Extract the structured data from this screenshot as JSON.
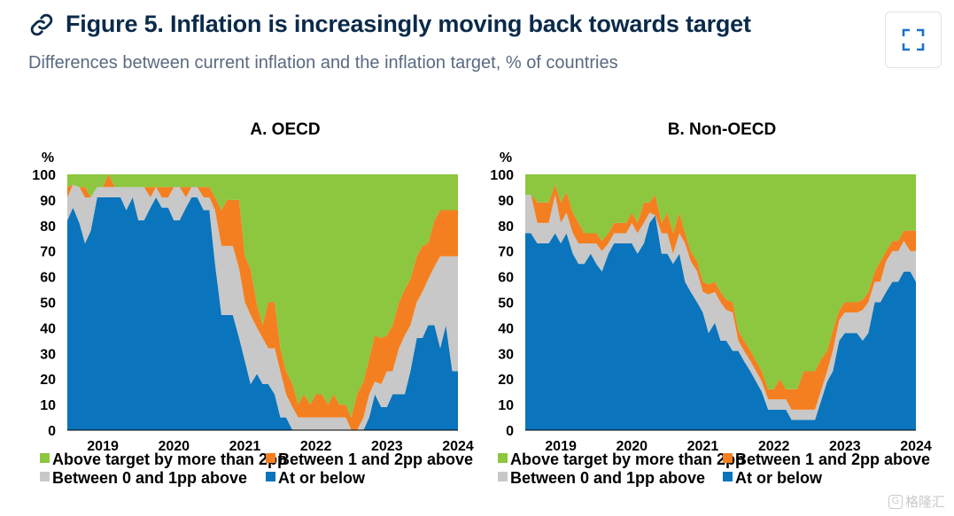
{
  "header": {
    "title": "Figure 5. Inflation is increasingly moving back towards target",
    "subtitle": "Differences between current inflation and the inflation target, % of countries"
  },
  "watermark": "格隆汇",
  "colors": {
    "green": "#8dc63f",
    "orange": "#f47f20",
    "grey": "#c8c8c8",
    "blue": "#0a75bc"
  },
  "legend": [
    {
      "key": "above2",
      "label": "Above target by more than 2pp",
      "color": "#8dc63f"
    },
    {
      "key": "b12",
      "label": "Between 1 and 2pp above",
      "color": "#f47f20"
    },
    {
      "key": "b01",
      "label": "Between 0 and 1pp above",
      "color": "#c8c8c8"
    },
    {
      "key": "below",
      "label": "At or below",
      "color": "#0a75bc"
    }
  ],
  "chart_data": [
    {
      "type": "area",
      "stacked": true,
      "title": "A. OECD",
      "ylabel": "%",
      "ylim": [
        0,
        100
      ],
      "yticks": [
        0,
        10,
        20,
        30,
        40,
        50,
        60,
        70,
        80,
        90,
        100
      ],
      "xrange": [
        2018.5,
        2024.0
      ],
      "xticks": [
        "2019",
        "2020",
        "2021",
        "2022",
        "2023",
        "2024"
      ],
      "x": [
        2018.5,
        2018.58,
        2018.67,
        2018.75,
        2018.83,
        2018.92,
        2019.0,
        2019.08,
        2019.17,
        2019.25,
        2019.33,
        2019.42,
        2019.5,
        2019.58,
        2019.67,
        2019.75,
        2019.83,
        2019.92,
        2020.0,
        2020.08,
        2020.17,
        2020.25,
        2020.33,
        2020.42,
        2020.5,
        2020.58,
        2020.67,
        2020.75,
        2020.83,
        2020.92,
        2021.0,
        2021.08,
        2021.17,
        2021.25,
        2021.33,
        2021.42,
        2021.5,
        2021.58,
        2021.67,
        2021.75,
        2021.83,
        2021.92,
        2022.0,
        2022.08,
        2022.17,
        2022.25,
        2022.33,
        2022.42,
        2022.5,
        2022.58,
        2022.67,
        2022.75,
        2022.83,
        2022.92,
        2023.0,
        2023.08,
        2023.17,
        2023.25,
        2023.33,
        2023.42,
        2023.5,
        2023.58,
        2023.67,
        2023.75,
        2023.83,
        2023.92,
        2024.0
      ],
      "series": [
        {
          "name": "At or below",
          "values": [
            82,
            87,
            81,
            73,
            78,
            91,
            91,
            91,
            91,
            91,
            86,
            91,
            82,
            82,
            87,
            91,
            87,
            87,
            82,
            82,
            87,
            91,
            91,
            86,
            86,
            65,
            45,
            45,
            45,
            36,
            27,
            18,
            22,
            18,
            18,
            14,
            5,
            5,
            0,
            0,
            0,
            0,
            0,
            0,
            0,
            0,
            0,
            0,
            0,
            0,
            0,
            5,
            14,
            9,
            9,
            14,
            14,
            14,
            23,
            36,
            36,
            41,
            41,
            32,
            41,
            23,
            23
          ]
        },
        {
          "name": "Between 0 and 1pp above",
          "values": [
            9,
            9,
            14,
            18,
            13,
            4,
            4,
            4,
            4,
            4,
            9,
            4,
            13,
            13,
            4,
            4,
            4,
            4,
            13,
            13,
            4,
            4,
            4,
            5,
            5,
            21,
            27,
            27,
            27,
            27,
            23,
            27,
            18,
            18,
            14,
            18,
            18,
            9,
            9,
            5,
            5,
            5,
            5,
            5,
            5,
            5,
            5,
            5,
            0,
            0,
            5,
            9,
            5,
            9,
            14,
            9,
            18,
            23,
            18,
            14,
            18,
            18,
            23,
            36,
            27,
            45,
            45
          ]
        },
        {
          "name": "Between 1 and 2pp above",
          "values": [
            4,
            0,
            0,
            4,
            0,
            0,
            0,
            5,
            0,
            0,
            0,
            0,
            0,
            0,
            4,
            0,
            4,
            4,
            0,
            0,
            4,
            0,
            0,
            4,
            4,
            5,
            14,
            18,
            18,
            27,
            18,
            18,
            9,
            5,
            18,
            18,
            9,
            9,
            9,
            5,
            9,
            5,
            9,
            9,
            5,
            9,
            5,
            5,
            5,
            14,
            14,
            14,
            18,
            18,
            14,
            18,
            18,
            18,
            18,
            18,
            18,
            14,
            18,
            18,
            18,
            18,
            18
          ]
        },
        {
          "name": "Above target by more than 2pp",
          "values": [
            5,
            4,
            5,
            5,
            9,
            5,
            5,
            0,
            5,
            5,
            5,
            5,
            5,
            5,
            5,
            5,
            5,
            5,
            5,
            5,
            5,
            5,
            5,
            5,
            5,
            9,
            14,
            10,
            10,
            10,
            32,
            37,
            51,
            59,
            50,
            50,
            68,
            77,
            82,
            90,
            86,
            90,
            86,
            86,
            90,
            86,
            90,
            90,
            95,
            86,
            81,
            72,
            63,
            64,
            63,
            59,
            50,
            45,
            41,
            32,
            28,
            27,
            18,
            14,
            14,
            14,
            14
          ]
        }
      ]
    },
    {
      "type": "area",
      "stacked": true,
      "title": "B. Non-OECD",
      "ylabel": "%",
      "ylim": [
        0,
        100
      ],
      "yticks": [
        0,
        10,
        20,
        30,
        40,
        50,
        60,
        70,
        80,
        90,
        100
      ],
      "xrange": [
        2018.5,
        2024.0
      ],
      "xticks": [
        "2019",
        "2020",
        "2021",
        "2022",
        "2023",
        "2024"
      ],
      "x": [
        2018.5,
        2018.58,
        2018.67,
        2018.75,
        2018.83,
        2018.92,
        2019.0,
        2019.08,
        2019.17,
        2019.25,
        2019.33,
        2019.42,
        2019.5,
        2019.58,
        2019.67,
        2019.75,
        2019.83,
        2019.92,
        2020.0,
        2020.08,
        2020.17,
        2020.25,
        2020.33,
        2020.42,
        2020.5,
        2020.58,
        2020.67,
        2020.75,
        2020.83,
        2020.92,
        2021.0,
        2021.08,
        2021.17,
        2021.25,
        2021.33,
        2021.42,
        2021.5,
        2021.58,
        2021.67,
        2021.75,
        2021.83,
        2021.92,
        2022.0,
        2022.08,
        2022.17,
        2022.25,
        2022.33,
        2022.42,
        2022.5,
        2022.58,
        2022.67,
        2022.75,
        2022.83,
        2022.92,
        2023.0,
        2023.08,
        2023.17,
        2023.25,
        2023.33,
        2023.42,
        2023.5,
        2023.58,
        2023.67,
        2023.75,
        2023.83,
        2023.92,
        2024.0
      ],
      "series": [
        {
          "name": "At or below",
          "values": [
            77,
            77,
            73,
            73,
            73,
            77,
            73,
            77,
            69,
            65,
            65,
            69,
            65,
            62,
            69,
            73,
            73,
            73,
            73,
            69,
            73,
            81,
            84,
            69,
            69,
            65,
            69,
            58,
            54,
            50,
            46,
            38,
            42,
            35,
            35,
            31,
            31,
            27,
            23,
            19,
            15,
            8,
            8,
            8,
            8,
            4,
            4,
            4,
            4,
            4,
            12,
            19,
            23,
            35,
            38,
            38,
            38,
            35,
            38,
            50,
            50,
            54,
            58,
            58,
            62,
            62,
            58
          ]
        },
        {
          "name": "Between 0 and 1pp above",
          "values": [
            15,
            15,
            8,
            8,
            8,
            15,
            8,
            8,
            8,
            8,
            8,
            4,
            8,
            8,
            4,
            4,
            4,
            4,
            8,
            8,
            8,
            4,
            0,
            8,
            8,
            4,
            8,
            15,
            12,
            12,
            8,
            15,
            12,
            15,
            12,
            15,
            4,
            4,
            4,
            4,
            4,
            4,
            4,
            4,
            4,
            4,
            4,
            4,
            4,
            4,
            4,
            4,
            8,
            8,
            8,
            8,
            8,
            12,
            12,
            8,
            8,
            12,
            12,
            12,
            12,
            8,
            12
          ]
        },
        {
          "name": "Between 1 and 2pp above",
          "values": [
            0,
            0,
            8,
            8,
            8,
            4,
            8,
            8,
            8,
            8,
            4,
            4,
            4,
            4,
            4,
            4,
            4,
            4,
            4,
            4,
            8,
            4,
            8,
            4,
            8,
            8,
            8,
            4,
            4,
            4,
            4,
            4,
            4,
            4,
            4,
            4,
            4,
            4,
            4,
            4,
            4,
            4,
            4,
            8,
            4,
            8,
            8,
            15,
            15,
            15,
            12,
            8,
            8,
            4,
            4,
            4,
            4,
            4,
            4,
            4,
            8,
            4,
            4,
            4,
            4,
            8,
            8
          ]
        },
        {
          "name": "Above target by more than 2pp",
          "values": [
            8,
            8,
            11,
            11,
            11,
            4,
            11,
            7,
            15,
            19,
            23,
            23,
            23,
            26,
            23,
            19,
            19,
            19,
            15,
            19,
            11,
            11,
            8,
            19,
            15,
            23,
            15,
            23,
            30,
            34,
            42,
            43,
            42,
            46,
            49,
            50,
            61,
            65,
            69,
            73,
            77,
            84,
            84,
            80,
            84,
            84,
            84,
            77,
            77,
            77,
            72,
            69,
            61,
            53,
            50,
            50,
            50,
            49,
            46,
            38,
            34,
            30,
            26,
            26,
            22,
            22,
            22
          ]
        }
      ]
    }
  ]
}
